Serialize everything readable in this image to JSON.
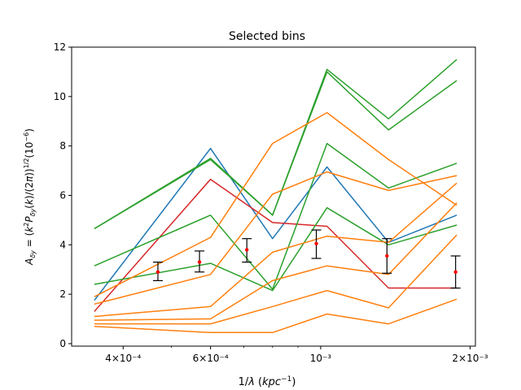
{
  "chart_data": {
    "type": "line",
    "title": "Selected bins",
    "xlabel": "1/λ (kpc⁻¹)",
    "ylabel": "A_δy = (k²P_δy(k)/(2π))^{1/2}(10⁻⁶)",
    "x_scale": "log",
    "xlim": [
      0.000315,
      0.00205
    ],
    "ylim": [
      -0.1,
      12.0
    ],
    "x_ticks": [
      {
        "value": 0.0004,
        "label": "4×10⁻⁴"
      },
      {
        "value": 0.0006,
        "label": "6×10⁻⁴"
      },
      {
        "value": 0.001,
        "label": "10⁻³"
      },
      {
        "value": 0.002,
        "label": "2×10⁻³"
      }
    ],
    "y_ticks": [
      {
        "value": 0,
        "label": "0"
      },
      {
        "value": 2,
        "label": "2"
      },
      {
        "value": 4,
        "label": "4"
      },
      {
        "value": 6,
        "label": "6"
      },
      {
        "value": 8,
        "label": "8"
      },
      {
        "value": 10,
        "label": "10"
      },
      {
        "value": 12,
        "label": "12"
      }
    ],
    "x": [
      0.00035,
      0.0006,
      0.0008,
      0.00103,
      0.00137,
      0.00188
    ],
    "series": [
      {
        "color": "#1f77b4",
        "values": [
          1.75,
          7.9,
          4.25,
          7.15,
          4.1,
          5.2
        ]
      },
      {
        "color": "#d62728",
        "values": [
          1.3,
          6.65,
          4.9,
          4.75,
          2.25,
          2.25
        ]
      },
      {
        "color": "#2ca02c",
        "values": [
          4.65,
          7.5,
          5.2,
          11.1,
          9.1,
          11.5
        ]
      },
      {
        "color": "#2ca02c",
        "values": [
          4.65,
          7.45,
          5.2,
          11.0,
          8.65,
          10.65
        ]
      },
      {
        "color": "#2ca02c",
        "values": [
          3.15,
          5.2,
          2.2,
          8.1,
          6.3,
          7.3
        ]
      },
      {
        "color": "#2ca02c",
        "values": [
          2.4,
          3.25,
          2.15,
          5.5,
          4.0,
          4.8
        ]
      },
      {
        "color": "#ff7f0e",
        "values": [
          1.9,
          4.3,
          8.1,
          9.35,
          7.45,
          5.6
        ]
      },
      {
        "color": "#ff7f0e",
        "values": [
          1.6,
          2.8,
          6.05,
          6.95,
          6.2,
          6.8
        ]
      },
      {
        "color": "#ff7f0e",
        "values": [
          1.1,
          1.5,
          3.7,
          4.35,
          4.1,
          6.5
        ]
      },
      {
        "color": "#ff7f0e",
        "values": [
          0.95,
          1.0,
          2.55,
          3.15,
          2.8,
          5.7
        ]
      },
      {
        "color": "#ff7f0e",
        "values": [
          0.8,
          0.8,
          1.5,
          2.15,
          1.45,
          4.4
        ]
      },
      {
        "color": "#ff7f0e",
        "values": [
          0.7,
          0.45,
          0.45,
          1.2,
          0.8,
          1.8
        ]
      }
    ],
    "errorbars": {
      "color": "#000000",
      "marker_color": "#ff0000",
      "points": [
        {
          "x": 0.00047,
          "y": 2.9,
          "low": 2.55,
          "high": 3.3
        },
        {
          "x": 0.00057,
          "y": 3.3,
          "low": 2.9,
          "high": 3.75
        },
        {
          "x": 0.00071,
          "y": 3.8,
          "low": 3.3,
          "high": 4.25
        },
        {
          "x": 0.00098,
          "y": 4.05,
          "low": 3.45,
          "high": 4.6
        },
        {
          "x": 0.00136,
          "y": 3.55,
          "low": 2.85,
          "high": 4.25
        },
        {
          "x": 0.00187,
          "y": 2.9,
          "low": 2.25,
          "high": 3.55
        }
      ]
    }
  }
}
